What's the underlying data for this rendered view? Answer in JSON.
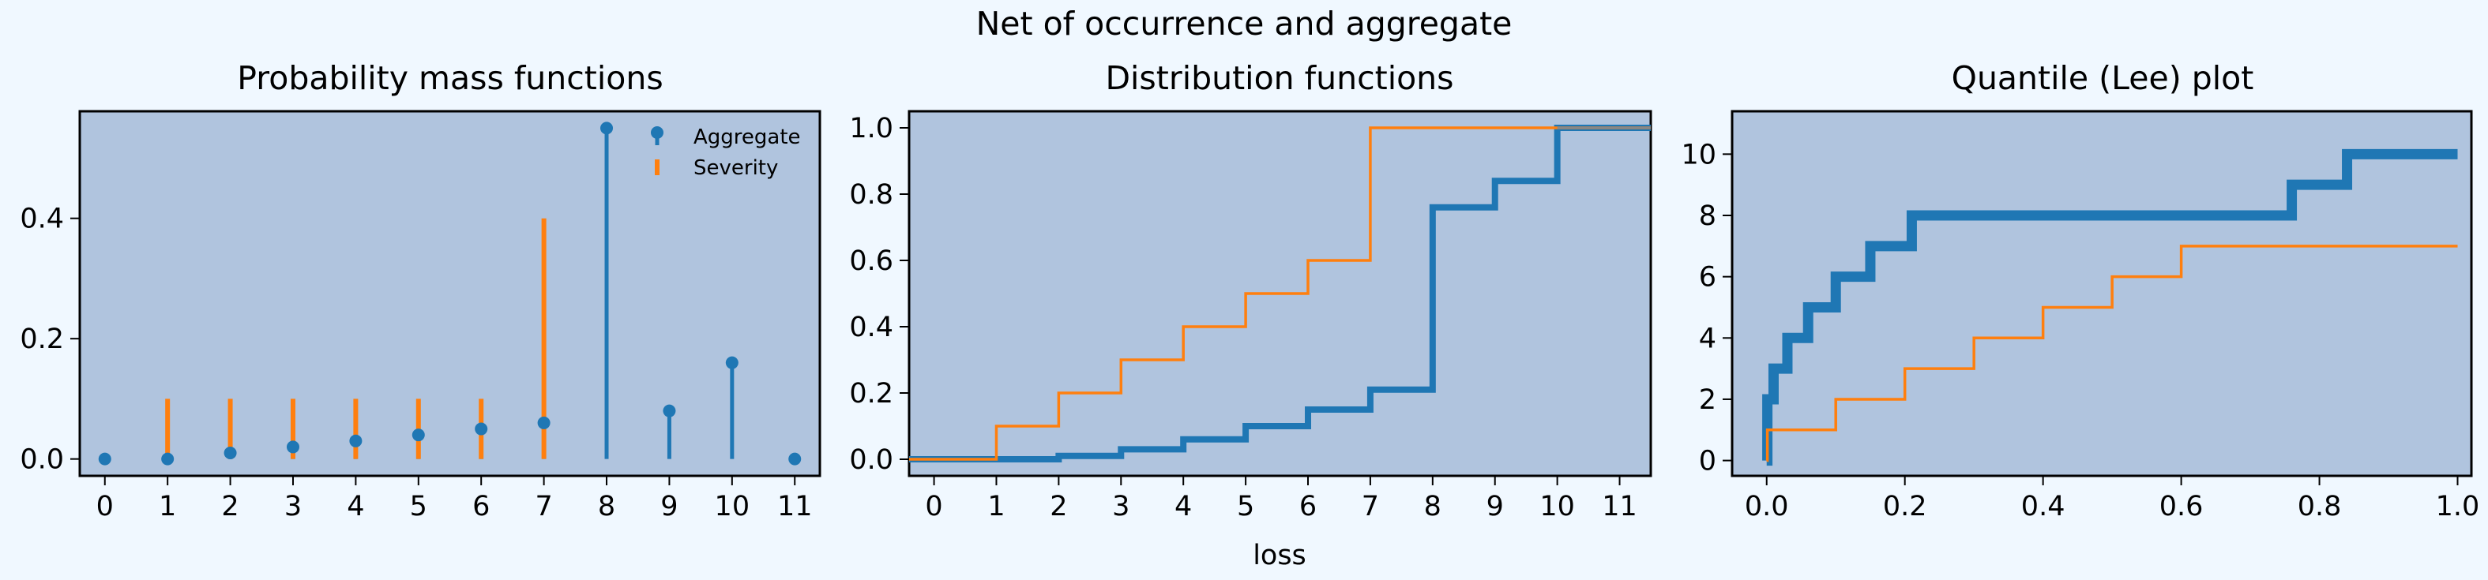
{
  "figure": {
    "suptitle": "Net of occurrence and aggregate",
    "background": "#f0f8ff",
    "axes_facecolor": "#b0c4de",
    "colors": {
      "aggregate": "#1f77b4",
      "severity": "#ff7f0e",
      "limit_line": "#888888"
    }
  },
  "chart_data": [
    {
      "type": "stem",
      "title": "Probability mass functions",
      "xlabel": "",
      "ylabel": "",
      "xlim": [
        -0.4,
        11.4
      ],
      "ylim": [
        -0.028,
        0.578
      ],
      "xticks": [
        0,
        1,
        2,
        3,
        4,
        5,
        6,
        7,
        8,
        9,
        10,
        11
      ],
      "yticks": [
        0.0,
        0.2,
        0.4
      ],
      "ytick_labels": [
        "0.0",
        "0.2",
        "0.4"
      ],
      "legend": {
        "placement": "top-right",
        "entries": [
          "Aggregate",
          "Severity"
        ]
      },
      "series": [
        {
          "name": "Aggregate",
          "x": [
            0,
            1,
            2,
            3,
            4,
            5,
            6,
            7,
            8,
            9,
            10,
            11
          ],
          "values": [
            0.0,
            0.0,
            0.01,
            0.02,
            0.03,
            0.04,
            0.05,
            0.06,
            0.55,
            0.08,
            0.16,
            0.0
          ]
        },
        {
          "name": "Severity",
          "x": [
            1,
            2,
            3,
            4,
            5,
            6,
            7
          ],
          "values": [
            0.1,
            0.1,
            0.1,
            0.1,
            0.1,
            0.1,
            0.4
          ]
        }
      ]
    },
    {
      "type": "line",
      "step": "post",
      "title": "Distribution functions",
      "xlabel": "loss",
      "ylabel": "",
      "xlim": [
        -0.4,
        11.5
      ],
      "ylim": [
        -0.05,
        1.05
      ],
      "xticks": [
        0,
        1,
        2,
        3,
        4,
        5,
        6,
        7,
        8,
        9,
        10,
        11
      ],
      "yticks": [
        0.0,
        0.2,
        0.4,
        0.6,
        0.8,
        1.0
      ],
      "ytick_labels": [
        "0.0",
        "0.2",
        "0.4",
        "0.6",
        "0.8",
        "1.0"
      ],
      "series": [
        {
          "name": "Aggregate",
          "x": [
            -0.4,
            0,
            1,
            2,
            3,
            4,
            5,
            6,
            7,
            8,
            9,
            10,
            11.5
          ],
          "values": [
            0.0,
            0.0,
            0.0,
            0.01,
            0.03,
            0.06,
            0.1,
            0.15,
            0.21,
            0.76,
            0.84,
            1.0,
            1.0
          ]
        },
        {
          "name": "Severity",
          "x": [
            -0.4,
            1,
            2,
            3,
            4,
            5,
            6,
            7,
            11.5
          ],
          "values": [
            0.0,
            0.1,
            0.2,
            0.3,
            0.4,
            0.5,
            0.6,
            1.0,
            1.0
          ]
        }
      ]
    },
    {
      "type": "line",
      "step": "post",
      "title": "Quantile (Lee) plot",
      "xlabel": "",
      "ylabel": "",
      "xlim": [
        -0.05,
        1.02
      ],
      "ylim": [
        -0.5,
        11.4
      ],
      "xticks": [
        0.0,
        0.2,
        0.4,
        0.6,
        0.8,
        1.0
      ],
      "xtick_labels": [
        "0.0",
        "0.2",
        "0.4",
        "0.6",
        "0.8",
        "1.0"
      ],
      "yticks": [
        0,
        2,
        4,
        6,
        8,
        10
      ],
      "series": [
        {
          "name": "Aggregate",
          "x": [
            0,
            0.001,
            0.01,
            0.03,
            0.06,
            0.1,
            0.15,
            0.21,
            0.76,
            0.84,
            1.0
          ],
          "values": [
            0,
            2,
            3,
            4,
            5,
            6,
            7,
            8,
            9,
            10,
            10
          ]
        },
        {
          "name": "Severity",
          "x": [
            0,
            0.001,
            0.1,
            0.2,
            0.3,
            0.4,
            0.5,
            0.6,
            1.0
          ],
          "values": [
            0,
            1,
            2,
            3,
            4,
            5,
            6,
            7,
            7
          ]
        }
      ]
    }
  ]
}
